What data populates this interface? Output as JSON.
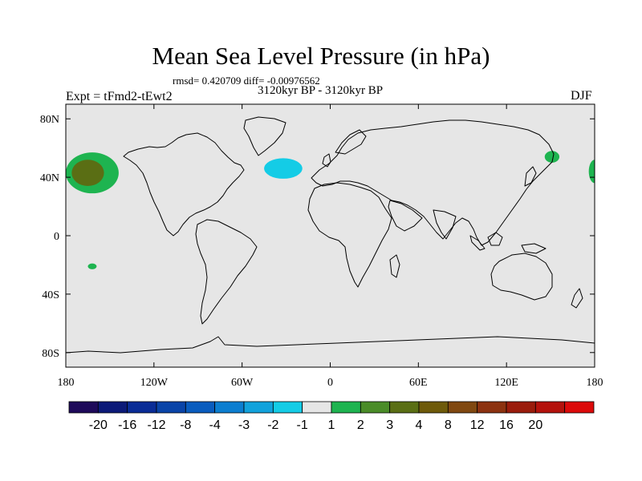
{
  "chart_data": {
    "type": "heatmap",
    "projection": "cylindrical-equidistant",
    "title": "Mean Sea Level Pressure (in hPa)",
    "stats": "rmsd= 0.420709 diff= -0.00976562",
    "period": "3120kyr BP - 3120kyr BP",
    "experiment": "Expt = tFmd2-tEwt2",
    "season": "DJF",
    "xlim": [
      -180,
      180
    ],
    "ylim": [
      -90,
      90
    ],
    "x_ticks": [
      {
        "value": -180,
        "label": "180"
      },
      {
        "value": -120,
        "label": "120W"
      },
      {
        "value": -60,
        "label": "60W"
      },
      {
        "value": 0,
        "label": "0"
      },
      {
        "value": 60,
        "label": "60E"
      },
      {
        "value": 120,
        "label": "120E"
      },
      {
        "value": 180,
        "label": "180"
      }
    ],
    "y_ticks": [
      {
        "value": 80,
        "label": "80N"
      },
      {
        "value": 40,
        "label": "40N"
      },
      {
        "value": 0,
        "label": "0"
      },
      {
        "value": -40,
        "label": "40S"
      },
      {
        "value": -80,
        "label": "80S"
      }
    ],
    "colorbar": {
      "colors": [
        "#1e0a5a",
        "#0c1a78",
        "#0a2c96",
        "#0a44a8",
        "#0a5cbe",
        "#0c7ed0",
        "#12a2dc",
        "#14cce6",
        "#e6e6e6",
        "#1eb450",
        "#4a8c28",
        "#5a6e14",
        "#6e5a0a",
        "#804810",
        "#8c3210",
        "#9a1c0c",
        "#b4120c",
        "#dc0a0a"
      ],
      "labels": [
        "-20",
        "-16",
        "-12",
        "-8",
        "-4",
        "-3",
        "-2",
        "-1",
        "1",
        "2",
        "3",
        "4",
        "8",
        "12",
        "16",
        "20"
      ]
    },
    "anomalies": [
      {
        "lon": -162,
        "lat": 43,
        "rlon": 18,
        "rlat": 14,
        "level": "2",
        "color": "#1eb450"
      },
      {
        "lon": -165,
        "lat": 43,
        "rlon": 11,
        "rlat": 9,
        "level": "3",
        "color": "#5a6e14"
      },
      {
        "lon": -32,
        "lat": 46,
        "rlon": 13,
        "rlat": 7,
        "level": "-2",
        "color": "#14cce6"
      },
      {
        "lon": 151,
        "lat": 54,
        "rlon": 5,
        "rlat": 4,
        "level": "2",
        "color": "#1eb450"
      },
      {
        "lon": 180,
        "lat": 44,
        "rlon": 4,
        "rlat": 8,
        "level": "2",
        "color": "#1eb450"
      },
      {
        "lon": -162,
        "lat": -21,
        "rlon": 3,
        "rlat": 2,
        "level": "2",
        "color": "#1eb450"
      }
    ]
  }
}
